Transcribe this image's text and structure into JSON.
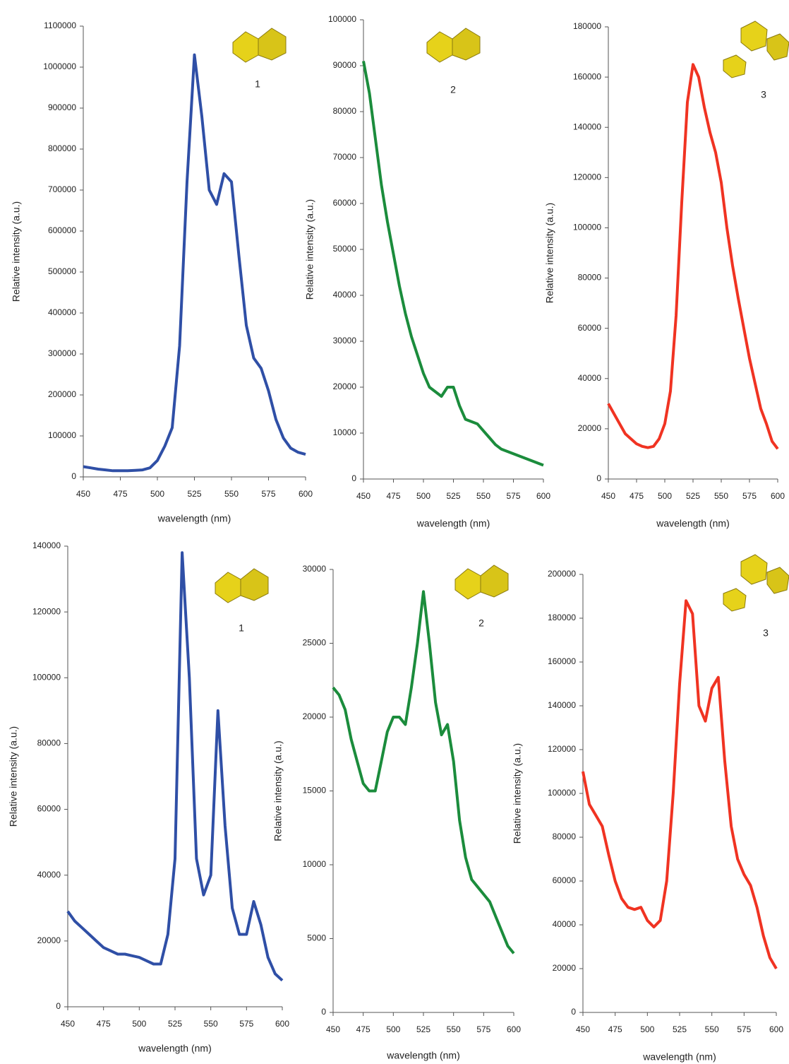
{
  "chart_data": [
    {
      "type": "line",
      "x_label": "wavelength (nm)",
      "y_label": "Relative intensity (a.u.)",
      "annotation": "1",
      "x": [
        450,
        455,
        460,
        465,
        470,
        475,
        480,
        485,
        490,
        495,
        500,
        505,
        510,
        515,
        520,
        525,
        530,
        535,
        540,
        545,
        550,
        555,
        560,
        565,
        570,
        575,
        580,
        585,
        590,
        595,
        600
      ],
      "series": [
        {
          "color": "#2f4fa6",
          "values": [
            25000,
            22000,
            19000,
            17000,
            15000,
            15000,
            15000,
            16000,
            17000,
            22000,
            40000,
            75000,
            120000,
            320000,
            720000,
            1030000,
            880000,
            700000,
            665000,
            740000,
            720000,
            540000,
            370000,
            290000,
            265000,
            210000,
            140000,
            95000,
            70000,
            60000,
            55000
          ]
        }
      ],
      "xlim": [
        450,
        600
      ],
      "xticks": [
        450,
        475,
        500,
        525,
        550,
        575,
        600
      ],
      "ylim": [
        0,
        1100000
      ],
      "yticks": [
        0,
        100000,
        200000,
        300000,
        400000,
        500000,
        600000,
        700000,
        800000,
        900000,
        1000000,
        1100000
      ]
    },
    {
      "type": "line",
      "x_label": "wavelength (nm)",
      "y_label": "Relative intensity (a.u.)",
      "annotation": "2",
      "x": [
        450,
        455,
        460,
        465,
        470,
        475,
        480,
        485,
        490,
        495,
        500,
        505,
        510,
        515,
        520,
        525,
        530,
        535,
        540,
        545,
        550,
        555,
        560,
        565,
        570,
        575,
        580,
        585,
        590,
        595,
        600
      ],
      "series": [
        {
          "color": "#1b8c3c",
          "values": [
            91000,
            84000,
            74000,
            64000,
            56000,
            49000,
            42000,
            36000,
            31000,
            27000,
            23000,
            20000,
            19000,
            18000,
            20000,
            20000,
            16000,
            13000,
            12500,
            12000,
            10500,
            9000,
            7500,
            6500,
            6000,
            5500,
            5000,
            4500,
            4000,
            3500,
            3000
          ]
        }
      ],
      "xlim": [
        450,
        600
      ],
      "xticks": [
        450,
        475,
        500,
        525,
        550,
        575,
        600
      ],
      "ylim": [
        0,
        100000
      ],
      "yticks": [
        0,
        10000,
        20000,
        30000,
        40000,
        50000,
        60000,
        70000,
        80000,
        90000,
        100000
      ]
    },
    {
      "type": "line",
      "x_label": "wavelength (nm)",
      "y_label": "Relative intensity (a.u.)",
      "annotation": "3",
      "x": [
        450,
        455,
        460,
        465,
        470,
        475,
        480,
        485,
        490,
        495,
        500,
        505,
        510,
        515,
        520,
        525,
        530,
        535,
        540,
        545,
        550,
        555,
        560,
        565,
        570,
        575,
        580,
        585,
        590,
        595,
        600
      ],
      "series": [
        {
          "color": "#f03322",
          "values": [
            30000,
            26000,
            22000,
            18000,
            16000,
            14000,
            13000,
            12500,
            13000,
            16000,
            22000,
            35000,
            65000,
            110000,
            150000,
            165000,
            160000,
            148000,
            138000,
            130000,
            118000,
            100000,
            85000,
            72000,
            60000,
            48000,
            38000,
            28000,
            22000,
            15000,
            12000
          ]
        }
      ],
      "xlim": [
        450,
        600
      ],
      "xticks": [
        450,
        475,
        500,
        525,
        550,
        575,
        600
      ],
      "ylim": [
        0,
        180000
      ],
      "yticks": [
        0,
        20000,
        40000,
        60000,
        80000,
        100000,
        120000,
        140000,
        160000,
        180000
      ]
    },
    {
      "type": "line",
      "x_label": "wavelength (nm)",
      "y_label": "Relative intensity (a.u.)",
      "annotation": "1",
      "x": [
        450,
        455,
        460,
        465,
        470,
        475,
        480,
        485,
        490,
        495,
        500,
        505,
        510,
        515,
        520,
        525,
        530,
        535,
        540,
        545,
        550,
        555,
        560,
        565,
        570,
        575,
        580,
        585,
        590,
        595,
        600
      ],
      "series": [
        {
          "color": "#2f4fa6",
          "values": [
            29000,
            26000,
            24000,
            22000,
            20000,
            18000,
            17000,
            16000,
            16000,
            15500,
            15000,
            14000,
            13000,
            13000,
            22000,
            45000,
            138000,
            100000,
            45000,
            34000,
            40000,
            90000,
            55000,
            30000,
            22000,
            22000,
            32000,
            25000,
            15000,
            10000,
            8000
          ]
        }
      ],
      "xlim": [
        450,
        600
      ],
      "xticks": [
        450,
        475,
        500,
        525,
        550,
        575,
        600
      ],
      "ylim": [
        0,
        140000
      ],
      "yticks": [
        0,
        20000,
        40000,
        60000,
        80000,
        100000,
        120000,
        140000
      ]
    },
    {
      "type": "line",
      "x_label": "wavelength (nm)",
      "y_label": "Relative intensity (a.u.)",
      "annotation": "2",
      "x": [
        450,
        455,
        460,
        465,
        470,
        475,
        480,
        485,
        490,
        495,
        500,
        505,
        510,
        515,
        520,
        525,
        530,
        535,
        540,
        545,
        550,
        555,
        560,
        565,
        570,
        575,
        580,
        585,
        590,
        595,
        600
      ],
      "series": [
        {
          "color": "#1b8c3c",
          "values": [
            22000,
            21500,
            20500,
            18500,
            17000,
            15500,
            15000,
            15000,
            17000,
            19000,
            20000,
            20000,
            19500,
            22000,
            25000,
            28500,
            25000,
            21000,
            18800,
            19500,
            17000,
            13000,
            10500,
            9000,
            8500,
            8000,
            7500,
            6500,
            5500,
            4500,
            4000
          ]
        }
      ],
      "xlim": [
        450,
        600
      ],
      "xticks": [
        450,
        475,
        500,
        525,
        550,
        575,
        600
      ],
      "ylim": [
        0,
        30000
      ],
      "yticks": [
        0,
        5000,
        10000,
        15000,
        20000,
        25000,
        30000
      ]
    },
    {
      "type": "line",
      "x_label": "wavelength (nm)",
      "y_label": "Relative intensity (a.u.)",
      "annotation": "3",
      "x": [
        450,
        455,
        460,
        465,
        470,
        475,
        480,
        485,
        490,
        495,
        500,
        505,
        510,
        515,
        520,
        525,
        530,
        535,
        540,
        545,
        550,
        555,
        560,
        565,
        570,
        575,
        580,
        585,
        590,
        595,
        600
      ],
      "series": [
        {
          "color": "#f03322",
          "values": [
            110000,
            95000,
            90000,
            85000,
            72000,
            60000,
            52000,
            48000,
            47000,
            48000,
            42000,
            39000,
            42000,
            60000,
            100000,
            150000,
            188000,
            182000,
            140000,
            133000,
            148000,
            153000,
            115000,
            85000,
            70000,
            63000,
            58000,
            48000,
            35000,
            25000,
            20000
          ]
        }
      ],
      "xlim": [
        450,
        600
      ],
      "xticks": [
        450,
        475,
        500,
        525,
        550,
        575,
        600
      ],
      "ylim": [
        0,
        200000
      ],
      "yticks": [
        0,
        20000,
        40000,
        60000,
        80000,
        100000,
        120000,
        140000,
        160000,
        180000,
        200000
      ]
    }
  ]
}
